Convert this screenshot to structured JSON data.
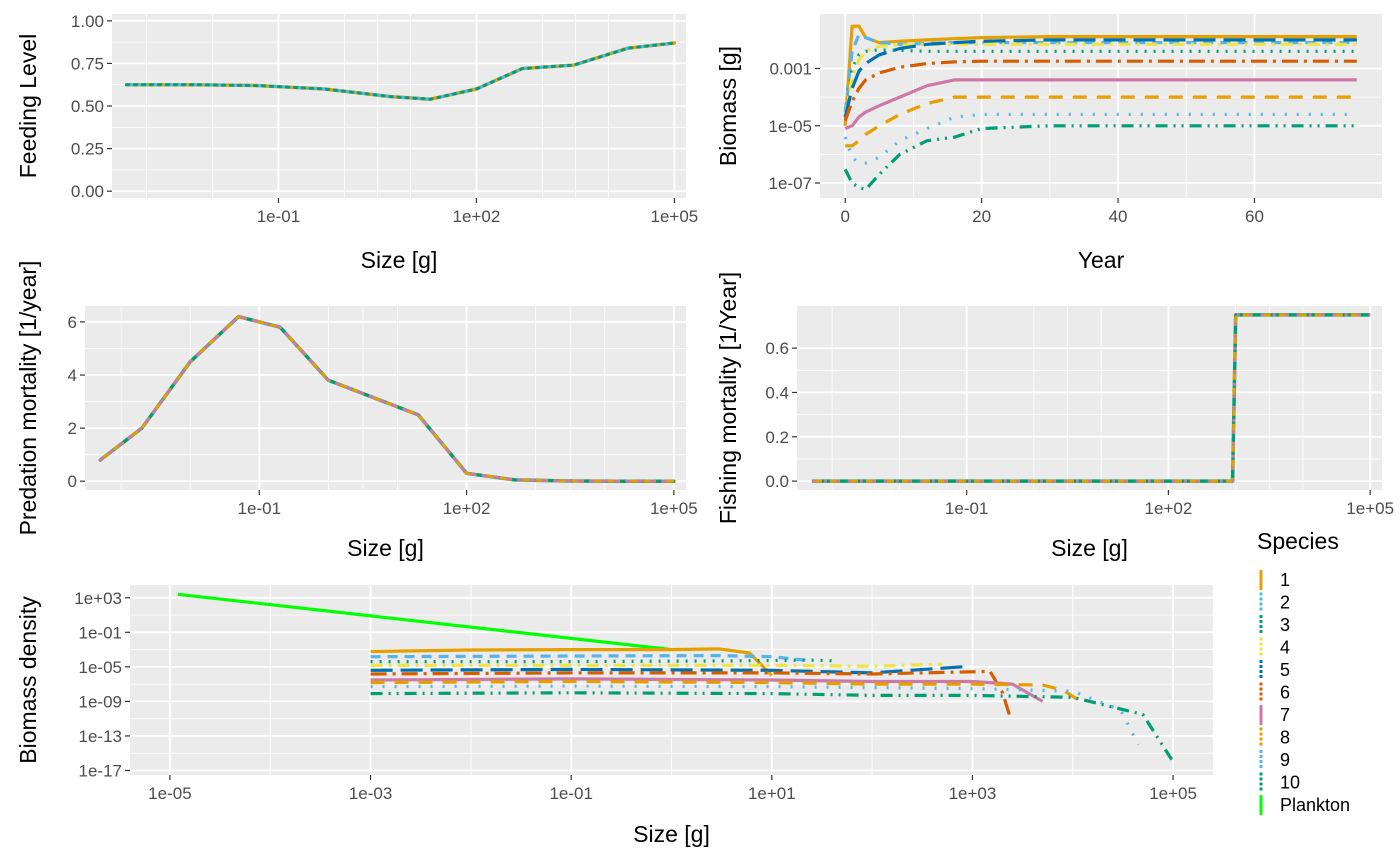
{
  "chart_data": [
    {
      "type": "line",
      "id": "feeding",
      "xlabel": "Size [g]",
      "ylabel": "Feeding Level",
      "x_scale": "log10",
      "xlim": [
        0.0003,
        150000
      ],
      "ylim": [
        -0.04,
        1.04
      ],
      "x_ticks": [
        0.1,
        100,
        100000
      ],
      "x_tick_labels": [
        "1e-01",
        "1e+02",
        "1e+05"
      ],
      "y_ticks": [
        0,
        0.25,
        0.5,
        0.75,
        1.0
      ],
      "y_tick_labels": [
        "0.00",
        "0.25",
        "0.50",
        "0.75",
        "1.00"
      ],
      "series": [
        {
          "ref": 0,
          "dash": [
            0,
            1
          ],
          "width": 3.5
        },
        {
          "ref": 1,
          "dash": [
            7,
            6
          ],
          "width": 3
        },
        {
          "ref": 2,
          "dash": [
            2,
            6
          ],
          "width": 3
        }
      ],
      "x": [
        0.0005,
        0.005,
        0.05,
        0.5,
        5,
        20,
        100,
        500,
        3000,
        20000,
        100000
      ],
      "y": [
        0.625,
        0.625,
        0.62,
        0.6,
        0.555,
        0.54,
        0.6,
        0.72,
        0.74,
        0.84,
        0.87
      ]
    },
    {
      "type": "line",
      "id": "biomass",
      "xlabel": "Year",
      "ylabel": "Biomass [g]",
      "y_scale": "log10",
      "xlim": [
        -3.7,
        78.7
      ],
      "ylim": [
        3e-08,
        0.08
      ],
      "x_ticks": [
        0,
        20,
        40,
        60
      ],
      "x_tick_labels": [
        "0",
        "20",
        "40",
        "60"
      ],
      "y_ticks": [
        1e-07,
        1e-05,
        0.001
      ],
      "y_tick_labels": [
        "1e-07",
        "1e-05",
        "0.001"
      ],
      "x": [
        0,
        1,
        2,
        3,
        5,
        8,
        12,
        16,
        20,
        30,
        45,
        60,
        75
      ],
      "series": [
        {
          "ref": 0,
          "y": [
            1e-05,
            0.03,
            0.03,
            0.012,
            0.008,
            0.009,
            0.01,
            0.011,
            0.012,
            0.013,
            0.013,
            0.013,
            0.013
          ]
        },
        {
          "ref": 1,
          "y": [
            3e-05,
            0.004,
            0.015,
            0.012,
            0.008,
            0.007,
            0.0075,
            0.008,
            0.008,
            0.008,
            0.008,
            0.008,
            0.008
          ]
        },
        {
          "ref": 2,
          "y": [
            2e-05,
            0.001,
            0.003,
            0.004,
            0.0045,
            0.0043,
            0.004,
            0.004,
            0.004,
            0.004,
            0.004,
            0.004,
            0.004
          ]
        },
        {
          "ref": 3,
          "y": [
            2e-05,
            0.0005,
            0.002,
            0.004,
            0.006,
            0.0065,
            0.007,
            0.007,
            0.007,
            0.007,
            0.007,
            0.007,
            0.007
          ]
        },
        {
          "ref": 4,
          "y": [
            2e-05,
            0.0002,
            0.0008,
            0.0015,
            0.003,
            0.005,
            0.007,
            0.008,
            0.009,
            0.01,
            0.01,
            0.01,
            0.01
          ]
        },
        {
          "ref": 5,
          "y": [
            1.5e-05,
            7e-05,
            0.0002,
            0.0004,
            0.0007,
            0.0011,
            0.0015,
            0.0017,
            0.0018,
            0.0018,
            0.0018,
            0.0018,
            0.0018
          ]
        },
        {
          "ref": 6,
          "y": [
            8e-06,
            1e-05,
            2e-05,
            3e-05,
            5e-05,
            0.0001,
            0.00025,
            0.0004,
            0.0004,
            0.0004,
            0.0004,
            0.0004,
            0.0004
          ]
        },
        {
          "ref": 7,
          "y": [
            2e-06,
            2e-06,
            3e-06,
            5e-06,
            1e-05,
            2.5e-05,
            6e-05,
            0.0001,
            0.0001,
            0.0001,
            0.0001,
            0.0001,
            0.0001
          ]
        },
        {
          "ref": 8,
          "y": [
            4e-06,
            8e-07,
            5e-07,
            5e-07,
            8e-07,
            3e-06,
            8e-06,
            2e-05,
            2.5e-05,
            2.5e-05,
            2.5e-05,
            2.5e-05,
            2.5e-05
          ]
        },
        {
          "ref": 9,
          "y": [
            3e-07,
            1e-07,
            7e-08,
            6e-08,
            2e-07,
            1e-06,
            3e-06,
            4e-06,
            8e-06,
            1e-05,
            1e-05,
            1e-05,
            1e-05
          ]
        }
      ]
    },
    {
      "type": "line",
      "id": "predation",
      "xlabel": "Size [g]",
      "ylabel": "Predation mortality [1/year]",
      "x_scale": "log10",
      "xlim": [
        0.0003,
        150000
      ],
      "ylim": [
        -0.33,
        6.6
      ],
      "x_ticks": [
        0.1,
        100,
        100000
      ],
      "x_tick_labels": [
        "1e-01",
        "1e+02",
        "1e+05"
      ],
      "y_ticks": [
        0,
        2,
        4,
        6
      ],
      "y_tick_labels": [
        "0",
        "2",
        "4",
        "6"
      ],
      "series": [
        {
          "ref": 2,
          "dash": [
            0,
            1
          ],
          "width": 3.5
        },
        {
          "ref": 0,
          "dash": [
            10,
            8
          ],
          "width": 3
        },
        {
          "ref": 6,
          "dash": [
            3,
            9
          ],
          "width": 3
        }
      ],
      "x": [
        0.0005,
        0.002,
        0.01,
        0.05,
        0.2,
        1,
        5,
        20,
        100,
        500,
        3000,
        20000,
        100000
      ],
      "y": [
        0.8,
        2.0,
        4.5,
        6.2,
        5.8,
        3.8,
        3.1,
        2.5,
        0.3,
        0.05,
        0.01,
        0,
        0
      ]
    },
    {
      "type": "line",
      "id": "fishing",
      "xlabel": "Size [g]",
      "ylabel": "Fishing mortality [1/Year]",
      "x_scale": "log10",
      "xlim": [
        0.0003,
        150000
      ],
      "ylim": [
        -0.04,
        0.79
      ],
      "x_ticks": [
        0.1,
        100,
        100000
      ],
      "x_tick_labels": [
        "1e-01",
        "1e+02",
        "1e+05"
      ],
      "y_ticks": [
        0,
        0.2,
        0.4,
        0.6
      ],
      "y_tick_labels": [
        "0.0",
        "0.2",
        "0.4",
        "0.6"
      ],
      "series": [
        {
          "ref": 2,
          "dash": [
            0,
            1
          ],
          "width": 3.5
        },
        {
          "ref": 0,
          "dash": [
            10,
            8
          ],
          "width": 3
        },
        {
          "ref": 6,
          "dash": [
            3,
            9
          ],
          "width": 3
        }
      ],
      "x": [
        0.0005,
        900,
        1000,
        100000
      ],
      "y": [
        0,
        0,
        0.75,
        0.75
      ]
    },
    {
      "type": "line",
      "id": "density",
      "xlabel": "Size [g]",
      "ylabel": "Biomass density",
      "x_scale": "log10",
      "y_scale": "log10",
      "xlim": [
        4e-06,
        250000
      ],
      "ylim": [
        3e-18,
        30000.0
      ],
      "x_ticks": [
        1e-05,
        0.001,
        0.1,
        10,
        1000,
        100000
      ],
      "x_tick_labels": [
        "1e-05",
        "1e-03",
        "1e-01",
        "1e+01",
        "1e+03",
        "1e+05"
      ],
      "y_ticks": [
        1e-17,
        1e-13,
        1e-09,
        1e-05,
        0.1,
        1000
      ],
      "y_tick_labels": [
        "1e-17",
        "1e-13",
        "1e-09",
        "1e-05",
        "1e-01",
        "1e+03"
      ],
      "plankton": {
        "ref": 10,
        "x": [
          1.2e-05,
          1
        ],
        "y": [
          2500,
          0.001
        ]
      },
      "series": [
        {
          "ref": 0,
          "x": [
            0.001,
            0.01,
            0.1,
            1,
            3,
            6,
            10
          ],
          "y": [
            0.0006,
            0.0009,
            0.001,
            0.001,
            0.0012,
            0.0004,
            1e-06
          ]
        },
        {
          "ref": 1,
          "x": [
            0.001,
            0.1,
            3,
            10,
            25
          ],
          "y": [
            0.00015,
            0.00018,
            0.0002,
            0.00015,
            5e-05
          ]
        },
        {
          "ref": 2,
          "x": [
            0.001,
            0.1,
            5,
            25,
            40
          ],
          "y": [
            4e-05,
            4e-05,
            5e-05,
            6e-05,
            5e-05
          ]
        },
        {
          "ref": 3,
          "x": [
            0.001,
            0.1,
            10,
            100,
            500
          ],
          "y": [
            1.5e-05,
            1.5e-05,
            1.5e-05,
            1.2e-05,
            2e-05
          ]
        },
        {
          "ref": 4,
          "x": [
            0.001,
            0.1,
            10,
            100,
            800
          ],
          "y": [
            4e-06,
            5e-06,
            4e-06,
            2e-06,
            1e-05
          ]
        },
        {
          "ref": 5,
          "x": [
            0.001,
            0.1,
            10,
            100,
            1500,
            2000,
            2400
          ],
          "y": [
            1.5e-06,
            2e-06,
            2e-06,
            1.5e-06,
            3e-06,
            1e-08,
            1e-11
          ]
        },
        {
          "ref": 6,
          "x": [
            0.001,
            0.1,
            10,
            100,
            1000,
            2500,
            5000
          ],
          "y": [
            3e-07,
            4e-07,
            3e-07,
            2e-07,
            2e-07,
            1e-07,
            1e-09
          ]
        },
        {
          "ref": 7,
          "x": [
            0.001,
            0.1,
            10,
            100,
            1000,
            5000,
            8000,
            12000
          ],
          "y": [
            1.5e-07,
            2e-07,
            1.5e-07,
            1e-07,
            1e-07,
            8e-08,
            2e-08,
            1e-09
          ]
        },
        {
          "ref": 8,
          "x": [
            0.001,
            0.1,
            10,
            100,
            1000,
            10000,
            30000,
            45000
          ],
          "y": [
            5e-08,
            6e-08,
            5e-08,
            4e-08,
            3e-08,
            1.5e-08,
            1e-10,
            1e-14
          ]
        },
        {
          "ref": 9,
          "x": [
            0.001,
            0.1,
            10,
            100,
            1000,
            10000,
            50000,
            100000
          ],
          "y": [
            8e-09,
            1e-08,
            8e-09,
            5e-09,
            5e-09,
            3e-09,
            3e-11,
            1e-16
          ]
        }
      ]
    }
  ],
  "legend": {
    "title": "Species",
    "placement": "bottom-right",
    "items": [
      {
        "label": "1",
        "color": "#E69F00"
      },
      {
        "label": "2",
        "color": "#56B4E9"
      },
      {
        "label": "3",
        "color": "#009E73"
      },
      {
        "label": "4",
        "color": "#F0E442"
      },
      {
        "label": "5",
        "color": "#0072B2"
      },
      {
        "label": "6",
        "color": "#D55E00"
      },
      {
        "label": "7",
        "color": "#CC79A7"
      },
      {
        "label": "8",
        "color": "#E69F00"
      },
      {
        "label": "9",
        "color": "#56B4E9"
      },
      {
        "label": "10",
        "color": "#009E73"
      },
      {
        "label": "Plankton",
        "color": "#00FF00"
      }
    ]
  },
  "panel_background": "#EBEBEB",
  "grid_color": "#FFFFFF",
  "grid": true
}
